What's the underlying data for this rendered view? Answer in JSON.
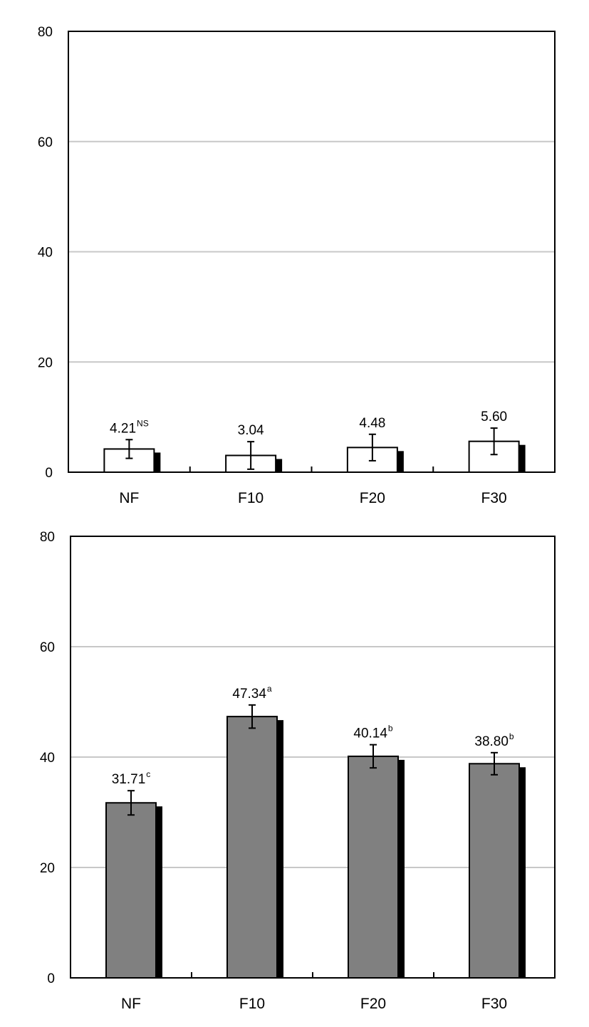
{
  "chart_data": [
    {
      "type": "bar",
      "title": "",
      "xlabel": "",
      "ylabel": "",
      "categories": [
        "NF",
        "F10",
        "F20",
        "F30"
      ],
      "values": [
        4.21,
        3.04,
        4.48,
        5.6
      ],
      "errors": [
        1.7,
        2.5,
        2.4,
        2.4
      ],
      "data_labels": [
        "4.21",
        "3.04",
        "4.48",
        "5.60"
      ],
      "superscripts": [
        "NS",
        "",
        "",
        ""
      ],
      "ylim": [
        0,
        80
      ],
      "yticks": [
        "0",
        "20",
        "40",
        "60",
        "80"
      ],
      "grid": true,
      "bar_color": "#ffffff"
    },
    {
      "type": "bar",
      "title": "",
      "xlabel": "",
      "ylabel": "",
      "categories": [
        "NF",
        "F10",
        "F20",
        "F30"
      ],
      "values": [
        31.71,
        47.34,
        40.14,
        38.8
      ],
      "errors": [
        2.2,
        2.1,
        2.1,
        2.0
      ],
      "data_labels": [
        "31.71",
        "47.34",
        "40.14",
        "38.80"
      ],
      "superscripts": [
        "c",
        "a",
        "b",
        "b"
      ],
      "ylim": [
        0,
        80
      ],
      "yticks": [
        "0",
        "20",
        "40",
        "60",
        "80"
      ],
      "grid": true,
      "bar_color": "#808080"
    }
  ]
}
